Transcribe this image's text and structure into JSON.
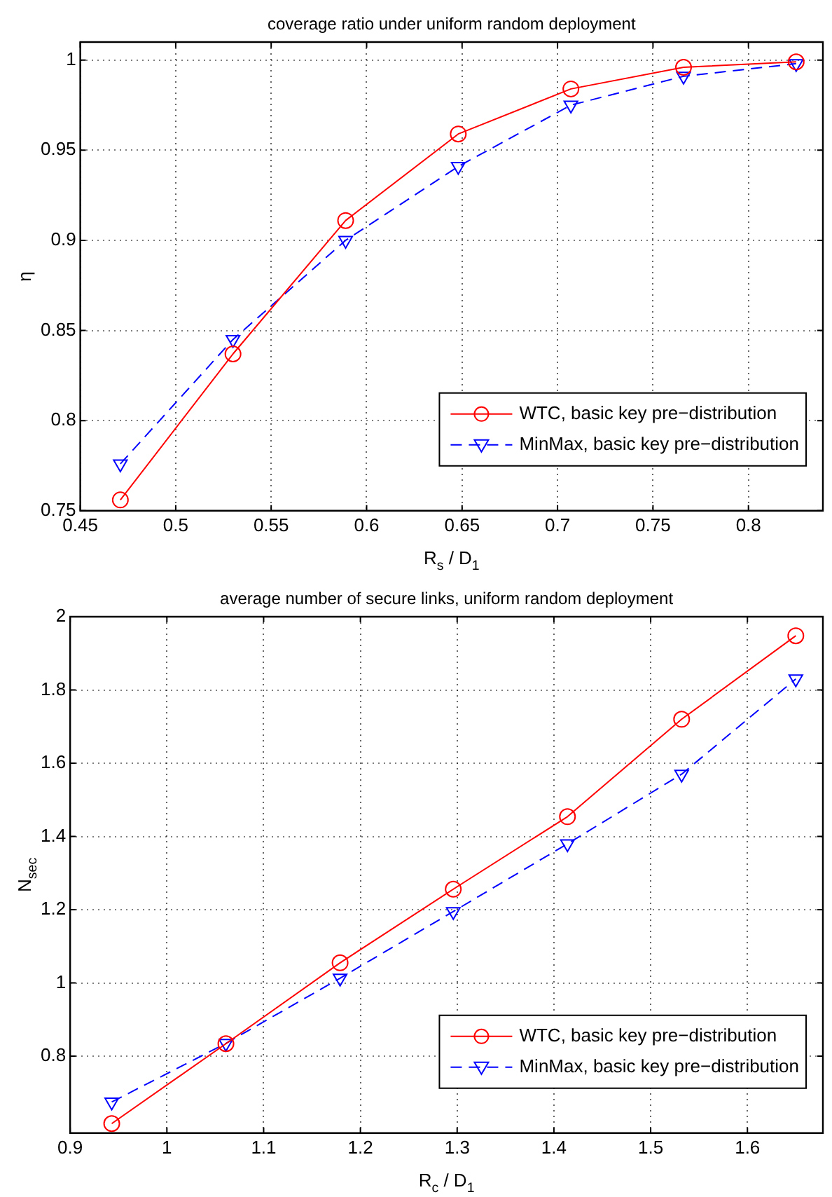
{
  "chart_data": [
    {
      "type": "line",
      "title": "coverage ratio under uniform random deployment",
      "xlabel": "R$_{s}$ / D$_{1}$",
      "ylabel": "η",
      "x": [
        0.471,
        0.53,
        0.589,
        0.648,
        0.707,
        0.766,
        0.825
      ],
      "series": [
        {
          "name": "WTC, basic key pre−distribution",
          "color": "#ff0000",
          "marker": "circle",
          "line_style": "solid",
          "values": [
            0.756,
            0.837,
            0.911,
            0.959,
            0.984,
            0.996,
            0.999
          ]
        },
        {
          "name": "MinMax, basic key pre−distribution",
          "color": "#0000ff",
          "marker": "triangle",
          "line_style": "dashed",
          "values": [
            0.776,
            0.845,
            0.9,
            0.941,
            0.975,
            0.991,
            0.998
          ]
        }
      ],
      "xlim": [
        0.45,
        0.839
      ],
      "xticks": [
        0.45,
        0.5,
        0.55,
        0.6,
        0.65,
        0.7,
        0.75,
        0.8
      ],
      "ylim": [
        0.75,
        1.01
      ],
      "yticks": [
        0.75,
        0.8,
        0.85,
        0.9,
        0.95,
        1
      ],
      "grid": true,
      "legend": "lower right"
    },
    {
      "type": "line",
      "title": "average number of secure links, uniform random deployment",
      "xlabel": "R$_{c}$ / D$_{1}$",
      "ylabel": "N$_{sec}$",
      "x": [
        0.943,
        1.061,
        1.179,
        1.296,
        1.414,
        1.532,
        1.65
      ],
      "series": [
        {
          "name": "WTC, basic key pre−distribution",
          "color": "#ff0000",
          "marker": "circle",
          "line_style": "solid",
          "values": [
            0.616,
            0.834,
            1.055,
            1.256,
            1.454,
            1.72,
            1.948
          ]
        },
        {
          "name": "MinMax, basic key pre−distribution",
          "color": "#0000ff",
          "marker": "triangle",
          "line_style": "dashed",
          "values": [
            0.675,
            0.835,
            1.013,
            1.195,
            1.38,
            1.57,
            1.83
          ]
        }
      ],
      "xlim": [
        0.9,
        1.678
      ],
      "xticks": [
        0.9,
        1,
        1.1,
        1.2,
        1.3,
        1.4,
        1.5,
        1.6
      ],
      "ylim": [
        0.59,
        2
      ],
      "yticks": [
        0.8,
        1,
        1.2,
        1.4,
        1.6,
        1.8,
        2
      ],
      "grid": true,
      "legend": "lower right"
    }
  ]
}
